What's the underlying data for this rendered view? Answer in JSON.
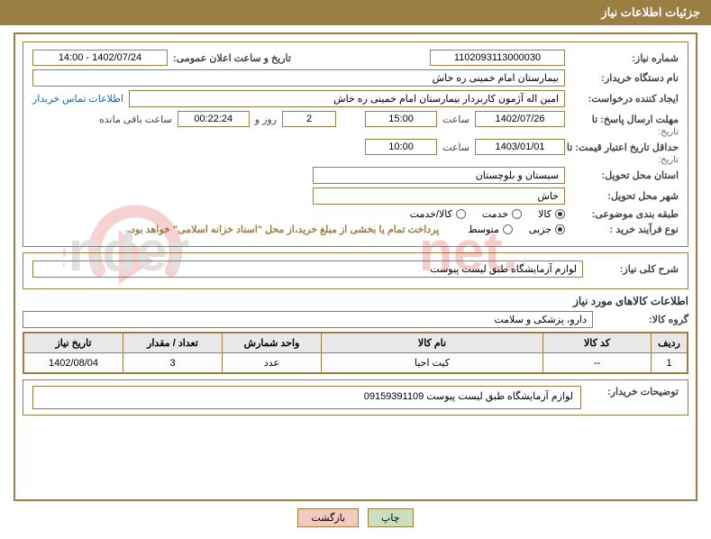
{
  "header": {
    "title": "جزئیات اطلاعات نیاز"
  },
  "fields": {
    "need_no_label": "شماره نیاز:",
    "need_no": "1102093113000030",
    "announce_label": "تاریخ و ساعت اعلان عمومی:",
    "announce_value": "1402/07/24 - 14:00",
    "buyer_org_label": "نام دستگاه خریدار:",
    "buyer_org": "بیمارستان امام خمینی ره خاش",
    "requester_label": "ایجاد کننده درخواست:",
    "requester": "امین اله آژمون کاربردار بیمارستان امام خمینی ره خاش",
    "contact_link": "اطلاعات تماس خریدار",
    "deadline_label": "مهلت ارسال پاسخ: تا",
    "deadline_date": "1402/07/26",
    "time_label": "ساعت",
    "deadline_time": "15:00",
    "days_label": "روز و",
    "days_value": "2",
    "countdown": "00:22:24",
    "remain_label": "ساعت باقی مانده",
    "date_sublabel": "تاریخ:",
    "validity_label": "حداقل تاریخ اعتبار قیمت: تا",
    "validity_date": "1403/01/01",
    "validity_time": "10:00",
    "province_label": "استان محل تحویل:",
    "province": "سیستان و بلوچستان",
    "city_label": "شهر محل تحویل:",
    "city": "خاش",
    "category_label": "طبقه بندی موضوعی:",
    "cat_goods": "کالا",
    "cat_service": "خدمت",
    "cat_both": "کالا/خدمت",
    "process_label": "نوع فرآیند خرید :",
    "proc_partial": "جزیی",
    "proc_medium": "متوسط",
    "payment_note": "پرداخت تمام یا بخشی از مبلغ خرید،از محل \"اسناد خزانه اسلامی\" خواهد بود.",
    "desc_label": "شرح کلی نیاز:",
    "desc_value": "لوازم آزمایشگاه طبق لیست پیوست",
    "items_title": "اطلاعات کالاهای مورد نیاز",
    "group_label": "گروه کالا:",
    "group_value": "دارو، پزشکی و سلامت",
    "buyer_note_label": "توضیحات خریدار:",
    "buyer_note": "لوازم آزمایشگاه طبق لیست پیوست   09159391109"
  },
  "table": {
    "headers": {
      "row": "ردیف",
      "code": "کد کالا",
      "name": "نام کالا",
      "unit": "واحد شمارش",
      "qty": "تعداد / مقدار",
      "date": "تاریخ نیاز"
    },
    "rows": [
      {
        "row": "1",
        "code": "--",
        "name": "کیت احیا",
        "unit": "عدد",
        "qty": "3",
        "date": "1402/08/04"
      }
    ],
    "col_widths": {
      "row": "40px",
      "code": "120px",
      "name": "auto",
      "unit": "110px",
      "qty": "110px",
      "date": "110px"
    }
  },
  "buttons": {
    "print": "چاپ",
    "back": "بازگشت"
  },
  "colors": {
    "brand": "#9b7e42",
    "link": "#1762b3",
    "btn_print": "#c9dfc0",
    "btn_back": "#f3c9c0",
    "th_bg": "#e8e8e8",
    "watermark_red": "#d93838",
    "watermark_grey": "#888888"
  },
  "watermark": {
    "text": "AriaTender.net"
  }
}
